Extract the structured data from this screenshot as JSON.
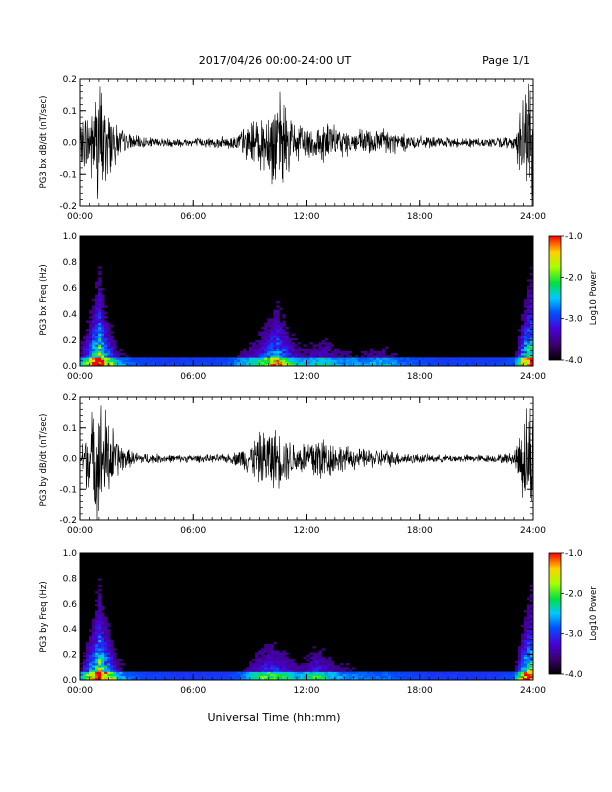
{
  "header": {
    "title": "2017/04/26  00:00-24:00 UT",
    "page": "Page 1/1"
  },
  "footer": {
    "xlabel": "Universal Time (hh:mm)"
  },
  "chart_data": [
    {
      "type": "line",
      "ylabel": "PG3 bx dB/dt (nT/sec)",
      "xlim": [
        "00:00",
        "24:00"
      ],
      "xticks": [
        "00:00",
        "06:00",
        "12:00",
        "18:00",
        "24:00"
      ],
      "ylim": [
        -0.2,
        0.2
      ],
      "yticks": [
        "-0.2",
        "-0.1",
        "0.0",
        "0.1",
        "0.2"
      ],
      "series": [
        {
          "x_hours": [
            0,
            0.5,
            1,
            1.5,
            2,
            2.5,
            3,
            4,
            5,
            6,
            7,
            8,
            8.5,
            9,
            9.5,
            10,
            10.5,
            11,
            11.5,
            12,
            12.5,
            13,
            13.5,
            14,
            15,
            16,
            17,
            18,
            19,
            20,
            21,
            22,
            23,
            23.5,
            24
          ],
          "envelope": [
            0.05,
            0.12,
            0.2,
            0.12,
            0.05,
            0.03,
            0.02,
            0.015,
            0.015,
            0.015,
            0.015,
            0.02,
            0.04,
            0.06,
            0.08,
            0.12,
            0.15,
            0.1,
            0.06,
            0.05,
            0.06,
            0.07,
            0.05,
            0.04,
            0.04,
            0.05,
            0.03,
            0.02,
            0.015,
            0.015,
            0.015,
            0.015,
            0.02,
            0.15,
            0.2
          ]
        }
      ]
    },
    {
      "type": "heatmap",
      "ylabel": "PG3 bx Freq (Hz)",
      "xlim": [
        "00:00",
        "24:00"
      ],
      "xticks": [
        "00:00",
        "06:00",
        "12:00",
        "18:00",
        "24:00"
      ],
      "ylim": [
        0,
        1.0
      ],
      "yticks": [
        "0.0",
        "0.2",
        "0.4",
        "0.6",
        "0.8",
        "1.0"
      ],
      "colorbar": {
        "label": "Log10 Power",
        "ticks": [
          "-1.0",
          "-2.0",
          "-3.0",
          "-4.0"
        ],
        "range": [
          -4.0,
          -1.0
        ]
      }
    },
    {
      "type": "line",
      "ylabel": "PG3 by dB/dt (nT/sec)",
      "xlim": [
        "00:00",
        "24:00"
      ],
      "xticks": [
        "00:00",
        "06:00",
        "12:00",
        "18:00",
        "24:00"
      ],
      "ylim": [
        -0.2,
        0.2
      ],
      "yticks": [
        "-0.2",
        "-0.1",
        "0.0",
        "0.1",
        "0.2"
      ],
      "series": [
        {
          "x_hours": [
            0,
            0.5,
            1,
            1.5,
            2,
            2.5,
            3,
            4,
            5,
            6,
            7,
            8,
            8.5,
            9,
            9.5,
            10,
            10.5,
            11,
            11.5,
            12,
            12.5,
            13,
            13.5,
            14,
            15,
            16,
            17,
            18,
            19,
            20,
            21,
            22,
            23,
            23.5,
            24
          ],
          "envelope": [
            0.04,
            0.12,
            0.2,
            0.14,
            0.06,
            0.03,
            0.02,
            0.015,
            0.012,
            0.012,
            0.012,
            0.015,
            0.03,
            0.05,
            0.08,
            0.1,
            0.09,
            0.07,
            0.05,
            0.06,
            0.09,
            0.07,
            0.05,
            0.04,
            0.03,
            0.03,
            0.02,
            0.015,
            0.012,
            0.012,
            0.012,
            0.012,
            0.02,
            0.15,
            0.2
          ]
        }
      ]
    },
    {
      "type": "heatmap",
      "ylabel": "PG3 by Freq (Hz)",
      "xlim": [
        "00:00",
        "24:00"
      ],
      "xticks": [
        "00:00",
        "06:00",
        "12:00",
        "18:00",
        "24:00"
      ],
      "ylim": [
        0,
        1.0
      ],
      "yticks": [
        "0.0",
        "0.2",
        "0.4",
        "0.6",
        "0.8",
        "1.0"
      ],
      "colorbar": {
        "label": "Log10 Power",
        "ticks": [
          "-1.0",
          "-2.0",
          "-3.0",
          "-4.0"
        ],
        "range": [
          -4.0,
          -1.0
        ]
      }
    }
  ]
}
